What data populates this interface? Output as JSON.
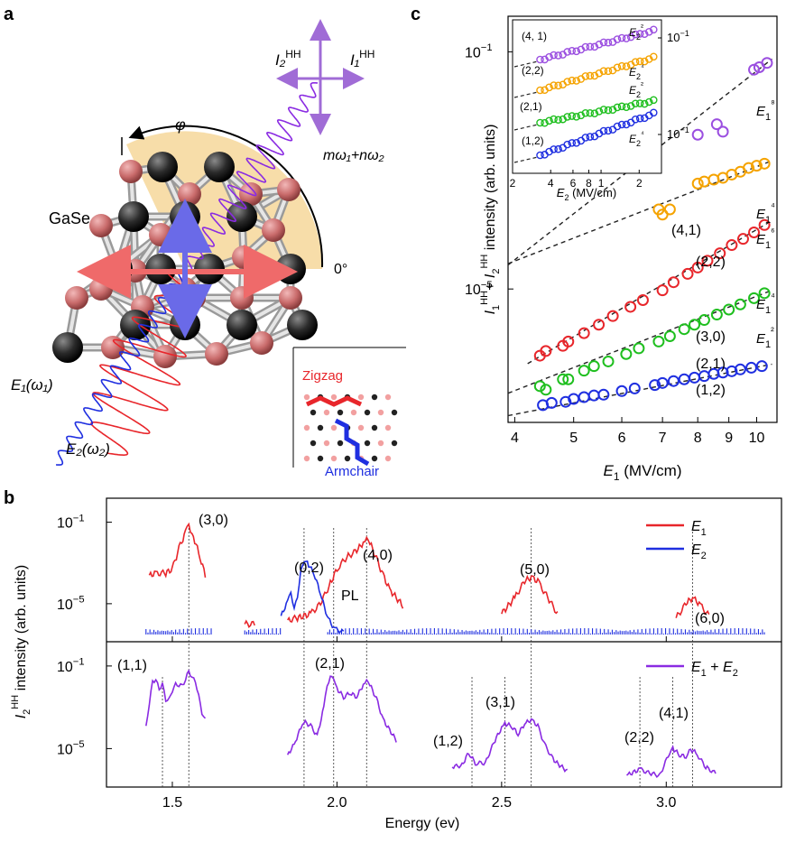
{
  "panels": {
    "a": {
      "letter": "a",
      "material": "GaSe",
      "angle_symbol": "φ",
      "zero_angle": "0°",
      "emission_label": "mω₁+nω₂",
      "beam1": "E₁(ω₁)",
      "beam2": "E₂(ω₂)",
      "pol_I1": "I₁",
      "pol_I2": "I₂",
      "pol_sup": "HH",
      "inset_zigzag": "Zigzag",
      "inset_armchair": "Armchair"
    },
    "b": {
      "letter": "b"
    },
    "c": {
      "letter": "c"
    }
  },
  "colors": {
    "red": "#e8262b",
    "blue": "#1f2fe0",
    "purple": "#8a2be2",
    "green": "#1fbf1f",
    "orange": "#f5a300",
    "violet_c": "#9b4fe0",
    "amber_shade": "#f6d79a"
  },
  "chart_data": [
    {
      "type": "scatter",
      "panel": "c",
      "xlabel": "E₁ (MV/cm)",
      "ylabel": "I₁ᴴᴴ+ I₂ᴴᴴ intensity (arb. units)",
      "xscale": "log",
      "yscale": "log",
      "xticks": [
        "4",
        "5",
        "6",
        "7",
        "8",
        "9",
        "10"
      ],
      "yticks": [
        "10⁻¹",
        "10⁻⁵"
      ],
      "series": [
        {
          "name": "(1,2)",
          "fit": "E₁²",
          "color": "#1f2fe0",
          "x": [
            4.45,
            4.6,
            4.85,
            5.0,
            5.2,
            5.4,
            5.6,
            6.0,
            6.3,
            6.8,
            7.0,
            7.3,
            7.6,
            7.9,
            8.2,
            8.5,
            8.8,
            9.1,
            9.4,
            9.8,
            10.2
          ],
          "y": [
            1.1e-07,
            1.2e-07,
            1.25e-07,
            1.4e-07,
            1.5e-07,
            1.6e-07,
            1.65e-07,
            1.9e-07,
            2.1e-07,
            2.4e-07,
            2.6e-07,
            2.8e-07,
            3e-07,
            3.2e-07,
            3.4e-07,
            3.7e-07,
            3.9e-07,
            4.1e-07,
            4.4e-07,
            4.7e-07,
            5e-07
          ]
        },
        {
          "name": "(2,1)",
          "fit": "E₁⁴",
          "color": "#1fbf1f",
          "x": [
            4.4,
            4.5,
            4.8,
            4.9,
            5.2,
            5.4,
            5.7,
            6.1,
            6.4,
            6.9,
            7.2,
            7.6,
            7.9,
            8.2,
            8.6,
            9.0,
            9.4,
            9.9,
            10.3
          ],
          "y": [
            2.3e-07,
            2e-07,
            3e-07,
            3e-07,
            4.2e-07,
            5e-07,
            6e-07,
            8e-07,
            1e-06,
            1.3e-06,
            1.6e-06,
            2.1e-06,
            2.5e-06,
            3e-06,
            3.7e-06,
            4.5e-06,
            5.5e-06,
            7e-06,
            8.5e-06
          ]
        },
        {
          "name": "(3,0)",
          "fit": "E₁⁶",
          "color": "#e8262b",
          "x": [
            4.4,
            4.5,
            4.8,
            4.9,
            5.2,
            5.5,
            5.8,
            6.2,
            6.5,
            7.0,
            7.3,
            7.7,
            8.0,
            8.3,
            8.7,
            9.1,
            9.5,
            9.9,
            10.3
          ],
          "y": [
            7.5e-07,
            9e-07,
            1.1e-06,
            1.3e-06,
            1.8e-06,
            2.5e-06,
            3.5e-06,
            5e-06,
            6.5e-06,
            9.5e-06,
            1.3e-05,
            1.8e-05,
            2.3e-05,
            3e-05,
            4e-05,
            5.5e-05,
            7e-05,
            9e-05,
            0.00012
          ]
        },
        {
          "name": "(2,2)",
          "fit": "E₁⁴",
          "color": "#f5a300",
          "x": [
            6.9,
            7.0,
            7.2,
            8.0,
            8.2,
            8.5,
            8.8,
            9.1,
            9.4,
            9.7,
            10.0,
            10.3
          ],
          "y": [
            0.00022,
            0.00018,
            0.00022,
            0.0006,
            0.00065,
            0.0007,
            0.00075,
            0.00085,
            0.00095,
            0.0011,
            0.0012,
            0.0013
          ]
        },
        {
          "name": "(4,1)",
          "fit": "E₁⁸",
          "color": "#9b4fe0",
          "x": [
            8.0,
            8.6,
            8.8,
            9.9,
            10.1,
            10.4
          ],
          "y": [
            0.004,
            0.006,
            0.0045,
            0.05,
            0.055,
            0.065
          ]
        }
      ]
    },
    {
      "type": "scatter",
      "panel": "c-inset",
      "xlabel": "E₂ (MV/cm)",
      "xscale": "log",
      "yscale": "log",
      "xticks": [
        "2",
        "4",
        "6",
        "8",
        "1",
        "2"
      ],
      "yticks": [
        "10⁻¹",
        "10⁻¹"
      ],
      "series": [
        {
          "name": "(4, 1)",
          "fit": "E₂²",
          "color": "#9b4fe0"
        },
        {
          "name": "(2,2)",
          "fit": "E₂⁴",
          "color": "#f5a300"
        },
        {
          "name": "(2,1)",
          "fit": "E₂²",
          "color": "#1fbf1f"
        },
        {
          "name": "(1,2)",
          "fit": "E₂⁴",
          "color": "#1f2fe0"
        }
      ]
    },
    {
      "type": "line",
      "panel": "b",
      "xlabel": "Energy (ev)",
      "ylabel": "I₂ᴴᴴ intensity (arb. units)",
      "xlim": [
        1.3,
        3.35
      ],
      "xticks": [
        "1.5",
        "2.0",
        "2.5",
        "3.0"
      ],
      "yticks_top": [
        "10⁻¹",
        "10⁻⁵"
      ],
      "yticks_bottom": [
        "10⁻¹",
        "10⁻⁵"
      ],
      "legend_top": [
        "E₁",
        "E₂"
      ],
      "legend_bottom": [
        "E₁ + E₂"
      ],
      "peaks_top": [
        {
          "label": "(3,0)",
          "x": 1.55
        },
        {
          "label": "(0,2)",
          "x": 1.9
        },
        {
          "label": "PL",
          "x": 1.99
        },
        {
          "label": "(4,0)",
          "x": 2.09
        },
        {
          "label": "(5,0)",
          "x": 2.59
        },
        {
          "label": "(6,0)",
          "x": 3.08
        }
      ],
      "peaks_bottom": [
        {
          "label": "(1,1)",
          "x": 1.47
        },
        {
          "label": "(2,1)",
          "x": 1.98
        },
        {
          "label": "(1,2)",
          "x": 2.41
        },
        {
          "label": "(3,1)",
          "x": 2.51
        },
        {
          "label": "(2,2)",
          "x": 2.92
        },
        {
          "label": "(4,1)",
          "x": 3.02
        }
      ],
      "series": [
        {
          "name": "E₁",
          "color": "#e8262b",
          "x": [
            1.43,
            1.45,
            1.48,
            1.5,
            1.52,
            1.54,
            1.55,
            1.56,
            1.58,
            1.6,
            1.72,
            1.75,
            1.8,
            1.85,
            1.88,
            1.92,
            1.95,
            1.98,
            2.0,
            2.03,
            2.06,
            2.08,
            2.09,
            2.1,
            2.12,
            2.14,
            2.16,
            2.2,
            2.3,
            2.4,
            2.5,
            2.54,
            2.57,
            2.59,
            2.61,
            2.64,
            2.67,
            2.75,
            2.85,
            2.95,
            3.03,
            3.06,
            3.08,
            3.1,
            3.13,
            3.2,
            3.3
          ],
          "y": [
            -3.6,
            -3.5,
            -3.5,
            -3.3,
            -2.3,
            -1.5,
            -1.2,
            -1.5,
            -2.5,
            -3.6,
            -6.0,
            -6.0,
            -5.9,
            -5.8,
            -5.7,
            -5.5,
            -5.0,
            -4.0,
            -3.3,
            -2.7,
            -2.4,
            -2.0,
            -1.8,
            -2.0,
            -2.8,
            -3.6,
            -4.3,
            -5.1,
            -5.7,
            -5.8,
            -5.5,
            -4.7,
            -3.9,
            -3.7,
            -3.9,
            -4.7,
            -5.5,
            -5.9,
            -6.0,
            -6.0,
            -5.7,
            -5.0,
            -4.7,
            -5.0,
            -5.6,
            -6.1,
            -6.2
          ]
        },
        {
          "name": "E₂",
          "color": "#1f2fe0",
          "x": [
            1.72,
            1.78,
            1.83,
            1.85,
            1.86,
            1.87,
            1.88,
            1.89,
            1.9,
            1.91,
            1.93,
            1.95,
            1.97,
            1.99,
            2.02
          ],
          "y": [
            -6.2,
            -6.1,
            -5.6,
            -4.9,
            -4.5,
            -5.2,
            -4.7,
            -3.4,
            -2.9,
            -3.0,
            -3.5,
            -4.5,
            -5.6,
            -6.2,
            -6.4
          ]
        },
        {
          "name": "E₁ + E₂",
          "color": "#8a2be2",
          "x": [
            1.42,
            1.43,
            1.44,
            1.45,
            1.46,
            1.47,
            1.48,
            1.49,
            1.5,
            1.51,
            1.52,
            1.53,
            1.54,
            1.55,
            1.56,
            1.57,
            1.58,
            1.59,
            1.6,
            1.72,
            1.8,
            1.85,
            1.87,
            1.89,
            1.9,
            1.92,
            1.94,
            1.96,
            1.97,
            1.98,
            1.99,
            2.0,
            2.02,
            2.04,
            2.06,
            2.08,
            2.09,
            2.1,
            2.12,
            2.14,
            2.18,
            2.25,
            2.35,
            2.38,
            2.4,
            2.42,
            2.45,
            2.48,
            2.5,
            2.51,
            2.53,
            2.55,
            2.57,
            2.59,
            2.61,
            2.63,
            2.66,
            2.7,
            2.8,
            2.88,
            2.92,
            2.95,
            2.98,
            3.01,
            3.02,
            3.04,
            3.06,
            3.07,
            3.09,
            3.12,
            3.15,
            3.2,
            3.3
          ],
          "y": [
            -3.9,
            -2.8,
            -1.8,
            -1.6,
            -2.2,
            -1.8,
            -2.7,
            -2.6,
            -2.2,
            -1.9,
            -1.9,
            -2.0,
            -1.6,
            -1.3,
            -1.5,
            -1.8,
            -2.4,
            -3.3,
            -3.6,
            -6.3,
            -6.0,
            -5.3,
            -4.8,
            -4.0,
            -3.7,
            -3.9,
            -4.4,
            -3.0,
            -2.0,
            -1.5,
            -1.6,
            -2.1,
            -2.5,
            -2.3,
            -2.5,
            -1.9,
            -1.7,
            -1.9,
            -2.6,
            -3.6,
            -4.6,
            -5.6,
            -5.9,
            -5.8,
            -5.2,
            -5.7,
            -5.7,
            -4.6,
            -4.0,
            -3.8,
            -3.9,
            -4.3,
            -3.8,
            -3.6,
            -3.9,
            -4.8,
            -5.6,
            -6.1,
            -6.3,
            -6.3,
            -6.0,
            -6.2,
            -6.3,
            -5.2,
            -5.0,
            -5.3,
            -5.4,
            -5.0,
            -5.2,
            -5.9,
            -6.2,
            -6.3,
            -6.4
          ]
        }
      ]
    }
  ]
}
